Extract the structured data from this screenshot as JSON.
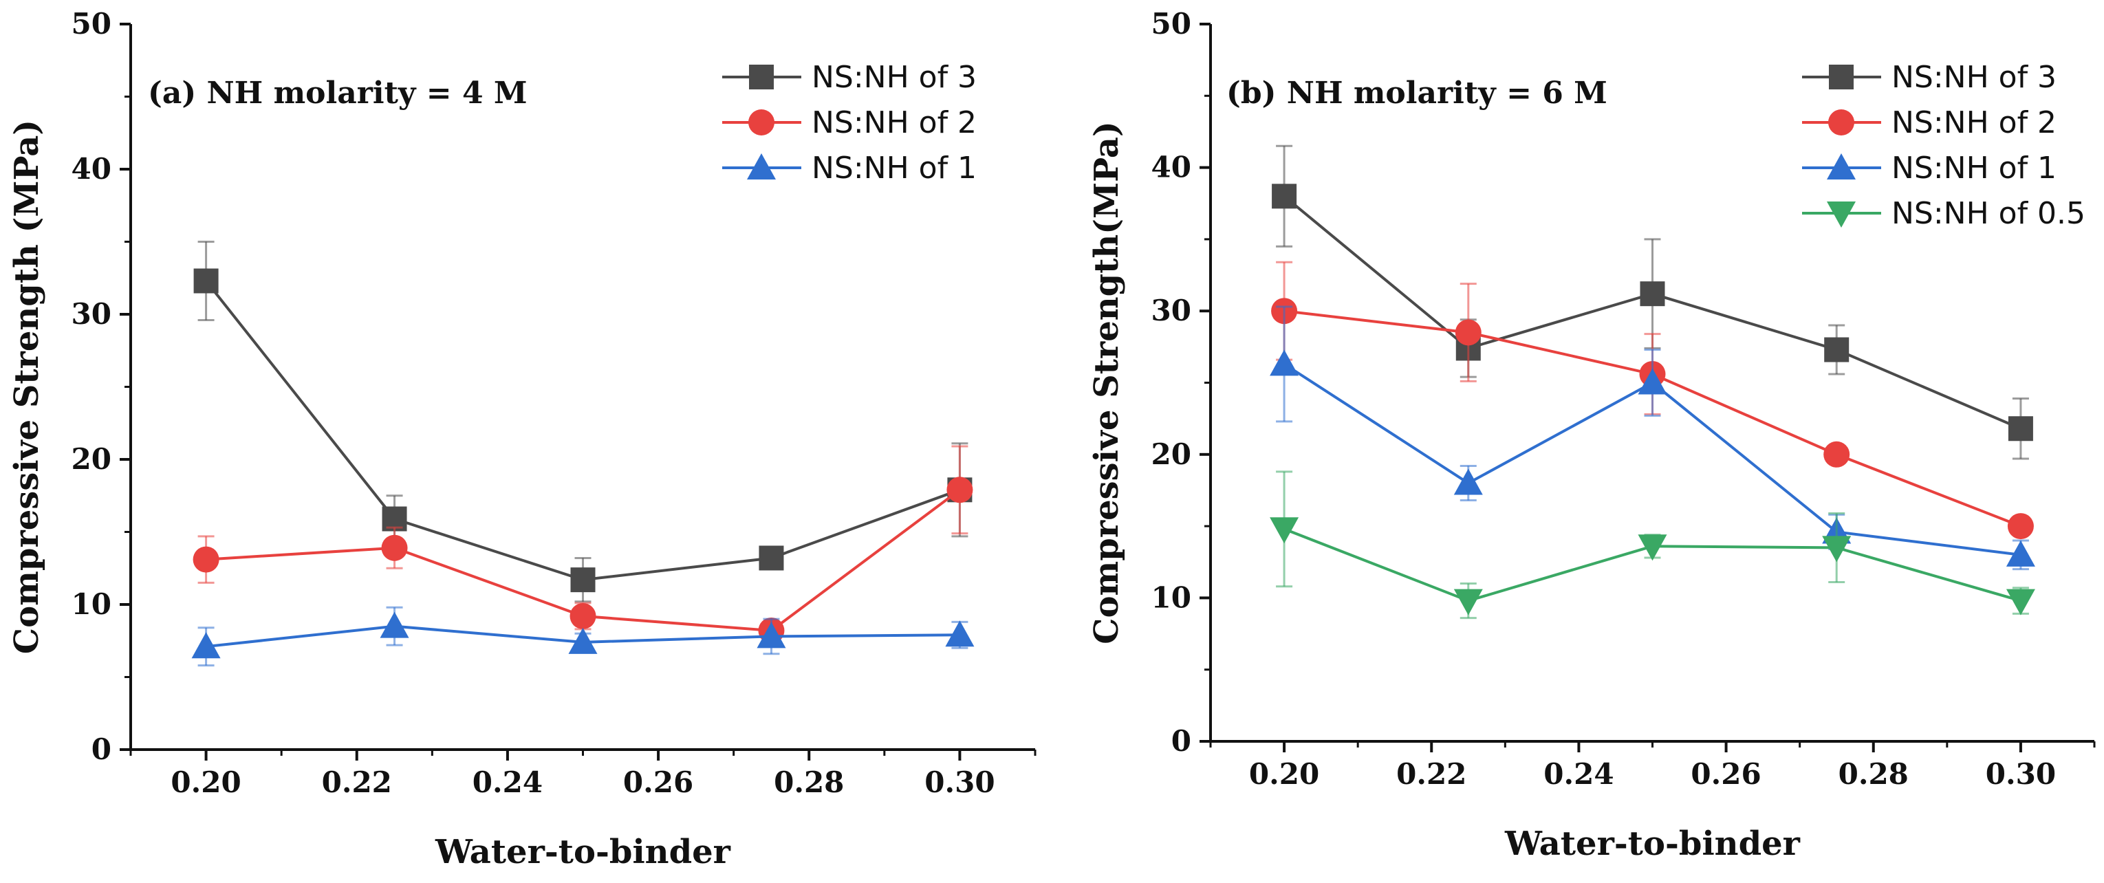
{
  "chart_data": [
    {
      "type": "line",
      "panel": "a",
      "annotation": "(a) NH molarity = 4 M",
      "xlabel": "Water-to-binder",
      "ylabel": "Compressive Strength (MPa)",
      "x": [
        0.2,
        0.225,
        0.25,
        0.275,
        0.3
      ],
      "xlim": [
        0.19,
        0.31
      ],
      "ylim": [
        0,
        50
      ],
      "xticks": [
        0.2,
        0.22,
        0.24,
        0.26,
        0.28,
        0.3
      ],
      "xtick_labels": [
        "0.20",
        "0.22",
        "0.24",
        "0.26",
        "0.28",
        "0.30"
      ],
      "yticks": [
        0,
        10,
        20,
        30,
        40,
        50
      ],
      "ytick_labels": [
        "0",
        "10",
        "20",
        "30",
        "40",
        "50"
      ],
      "legend_position": "top-right",
      "grid": false,
      "series": [
        {
          "name": "NS:NH of 3",
          "color": "#4a4a4a",
          "marker": "square",
          "values": [
            32.3,
            15.9,
            11.7,
            13.2,
            17.9
          ],
          "errors": [
            2.7,
            1.6,
            1.5,
            0.6,
            3.2
          ]
        },
        {
          "name": "NS:NH of 2",
          "color": "#e8413e",
          "marker": "circle",
          "values": [
            13.1,
            13.9,
            9.2,
            8.2,
            17.9
          ],
          "errors": [
            1.6,
            1.4,
            0.9,
            0.6,
            3.0
          ]
        },
        {
          "name": "NS:NH of 1",
          "color": "#2f6fcf",
          "marker": "triangle-up",
          "values": [
            7.1,
            8.5,
            7.4,
            7.8,
            7.9
          ],
          "errors": [
            1.3,
            1.3,
            0.6,
            1.2,
            0.9
          ]
        }
      ]
    },
    {
      "type": "line",
      "panel": "b",
      "annotation": "(b) NH molarity = 6 M",
      "xlabel": "Water-to-binder",
      "ylabel": "Compressive Strength(MPa)",
      "x": [
        0.2,
        0.225,
        0.25,
        0.275,
        0.3
      ],
      "xlim": [
        0.19,
        0.31
      ],
      "ylim": [
        0,
        50
      ],
      "xticks": [
        0.2,
        0.22,
        0.24,
        0.26,
        0.28,
        0.3
      ],
      "xtick_labels": [
        "0.20",
        "0.22",
        "0.24",
        "0.26",
        "0.28",
        "0.30"
      ],
      "yticks": [
        0,
        10,
        20,
        30,
        40,
        50
      ],
      "ytick_labels": [
        "0",
        "10",
        "20",
        "30",
        "40",
        "50"
      ],
      "legend_position": "top-right",
      "grid": false,
      "series": [
        {
          "name": "NS:NH of 3",
          "color": "#4a4a4a",
          "marker": "square",
          "values": [
            38.0,
            27.4,
            31.2,
            27.3,
            21.8
          ],
          "errors": [
            3.5,
            2.0,
            3.8,
            1.7,
            2.1
          ]
        },
        {
          "name": "NS:NH of 2",
          "color": "#e8413e",
          "marker": "circle",
          "values": [
            30.0,
            28.5,
            25.6,
            20.0,
            15.0
          ],
          "errors": [
            3.4,
            3.4,
            2.8,
            0.6,
            0.5
          ]
        },
        {
          "name": "NS:NH of 1",
          "color": "#2f6fcf",
          "marker": "triangle-up",
          "values": [
            26.3,
            18.0,
            25.0,
            14.6,
            13.0
          ],
          "errors": [
            4.0,
            1.2,
            2.3,
            1.2,
            1.0
          ]
        },
        {
          "name": "NS:NH of 0.5",
          "color": "#3aa864",
          "marker": "triangle-down",
          "values": [
            14.8,
            9.8,
            13.6,
            13.5,
            9.8
          ],
          "errors": [
            4.0,
            1.2,
            0.8,
            2.4,
            0.9
          ]
        }
      ]
    }
  ]
}
